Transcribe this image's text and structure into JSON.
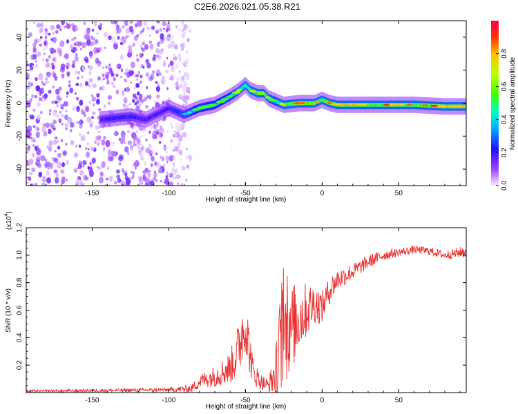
{
  "title": "C2E6.2026.021.05.38.R21",
  "chart_data": [
    {
      "type": "heatmap",
      "name": "spectrogram",
      "xlabel": "Height of straight line (km)",
      "ylabel": "Frequency (Hz)",
      "xlim": [
        -193,
        94
      ],
      "ylim": [
        -50,
        50
      ],
      "xticks": [
        -150,
        -100,
        -50,
        0,
        50
      ],
      "yticks": [
        -40,
        -20,
        0,
        20,
        40
      ],
      "colorbar": {
        "label": "Normalized spectral amplitude",
        "ticks": [
          0.0,
          0.2,
          0.4,
          0.6,
          0.8
        ],
        "range": [
          0,
          1
        ],
        "colors": [
          "#f4ecfb",
          "#a040ff",
          "#2010ff",
          "#00b0ff",
          "#00ffc0",
          "#40ff00",
          "#c0ff00",
          "#ffc000",
          "#ff3000",
          "#ff0050"
        ]
      },
      "ridge": {
        "x": [
          -145,
          -135,
          -125,
          -115,
          -100,
          -90,
          -80,
          -70,
          -60,
          -55,
          -50,
          -47,
          -42,
          -38,
          -35,
          -30,
          -25,
          -15,
          -5,
          0,
          5,
          10,
          20,
          40,
          60,
          80,
          94
        ],
        "freq": [
          -10,
          -9,
          -8,
          -10,
          -3,
          -7,
          -3,
          -1,
          4,
          7,
          11,
          8,
          6,
          6,
          3,
          1,
          -1,
          0,
          0,
          2,
          0,
          -1,
          -1,
          -1,
          -1,
          -2,
          -2
        ],
        "amplitude": [
          0.3,
          0.35,
          0.35,
          0.3,
          0.3,
          0.4,
          0.6,
          0.55,
          0.6,
          0.7,
          0.75,
          0.7,
          0.9,
          0.95,
          0.7,
          0.6,
          0.75,
          0.9,
          0.85,
          0.75,
          0.9,
          0.85,
          0.8,
          0.8,
          0.85,
          0.9,
          0.95
        ]
      },
      "noise_region_x": [
        -193,
        -98
      ]
    },
    {
      "type": "line",
      "name": "snr",
      "xlabel": "Height of straight line (km)",
      "ylabel": "SNR (10 * v/v)",
      "y_multiplier": "(x10",
      "y_multiplier_exp": "4",
      "y_multiplier_close": ")",
      "xlim": [
        -193,
        94
      ],
      "ylim": [
        0,
        1.2
      ],
      "xticks": [
        -150,
        -100,
        -50,
        0,
        50
      ],
      "yticks": [
        0.2,
        0.4,
        0.6,
        0.8,
        1.0,
        1.2
      ],
      "color": "#e83030",
      "envelope": {
        "x": [
          -193,
          -100,
          -85,
          -80,
          -70,
          -60,
          -55,
          -52,
          -50,
          -48,
          -45,
          -40,
          -35,
          -30,
          -28,
          -26,
          -22,
          -18,
          -15,
          -10,
          -5,
          0,
          5,
          10,
          20,
          30,
          40,
          50,
          60,
          70,
          80,
          90,
          94
        ],
        "base": [
          0.01,
          0.02,
          0.03,
          0.08,
          0.12,
          0.18,
          0.3,
          0.45,
          0.5,
          0.35,
          0.15,
          0.08,
          0.05,
          0.15,
          0.3,
          0.4,
          0.45,
          0.5,
          0.55,
          0.6,
          0.65,
          0.62,
          0.75,
          0.82,
          0.88,
          0.95,
          1.0,
          1.02,
          1.04,
          1.03,
          1.0,
          1.02,
          1.03
        ],
        "amp": [
          0.01,
          0.015,
          0.03,
          0.05,
          0.08,
          0.12,
          0.2,
          0.25,
          0.2,
          0.2,
          0.1,
          0.06,
          0.05,
          0.2,
          0.35,
          0.4,
          0.35,
          0.3,
          0.25,
          0.2,
          0.15,
          0.12,
          0.1,
          0.08,
          0.06,
          0.05,
          0.04,
          0.03,
          0.03,
          0.03,
          0.03,
          0.04,
          0.06
        ]
      }
    }
  ]
}
